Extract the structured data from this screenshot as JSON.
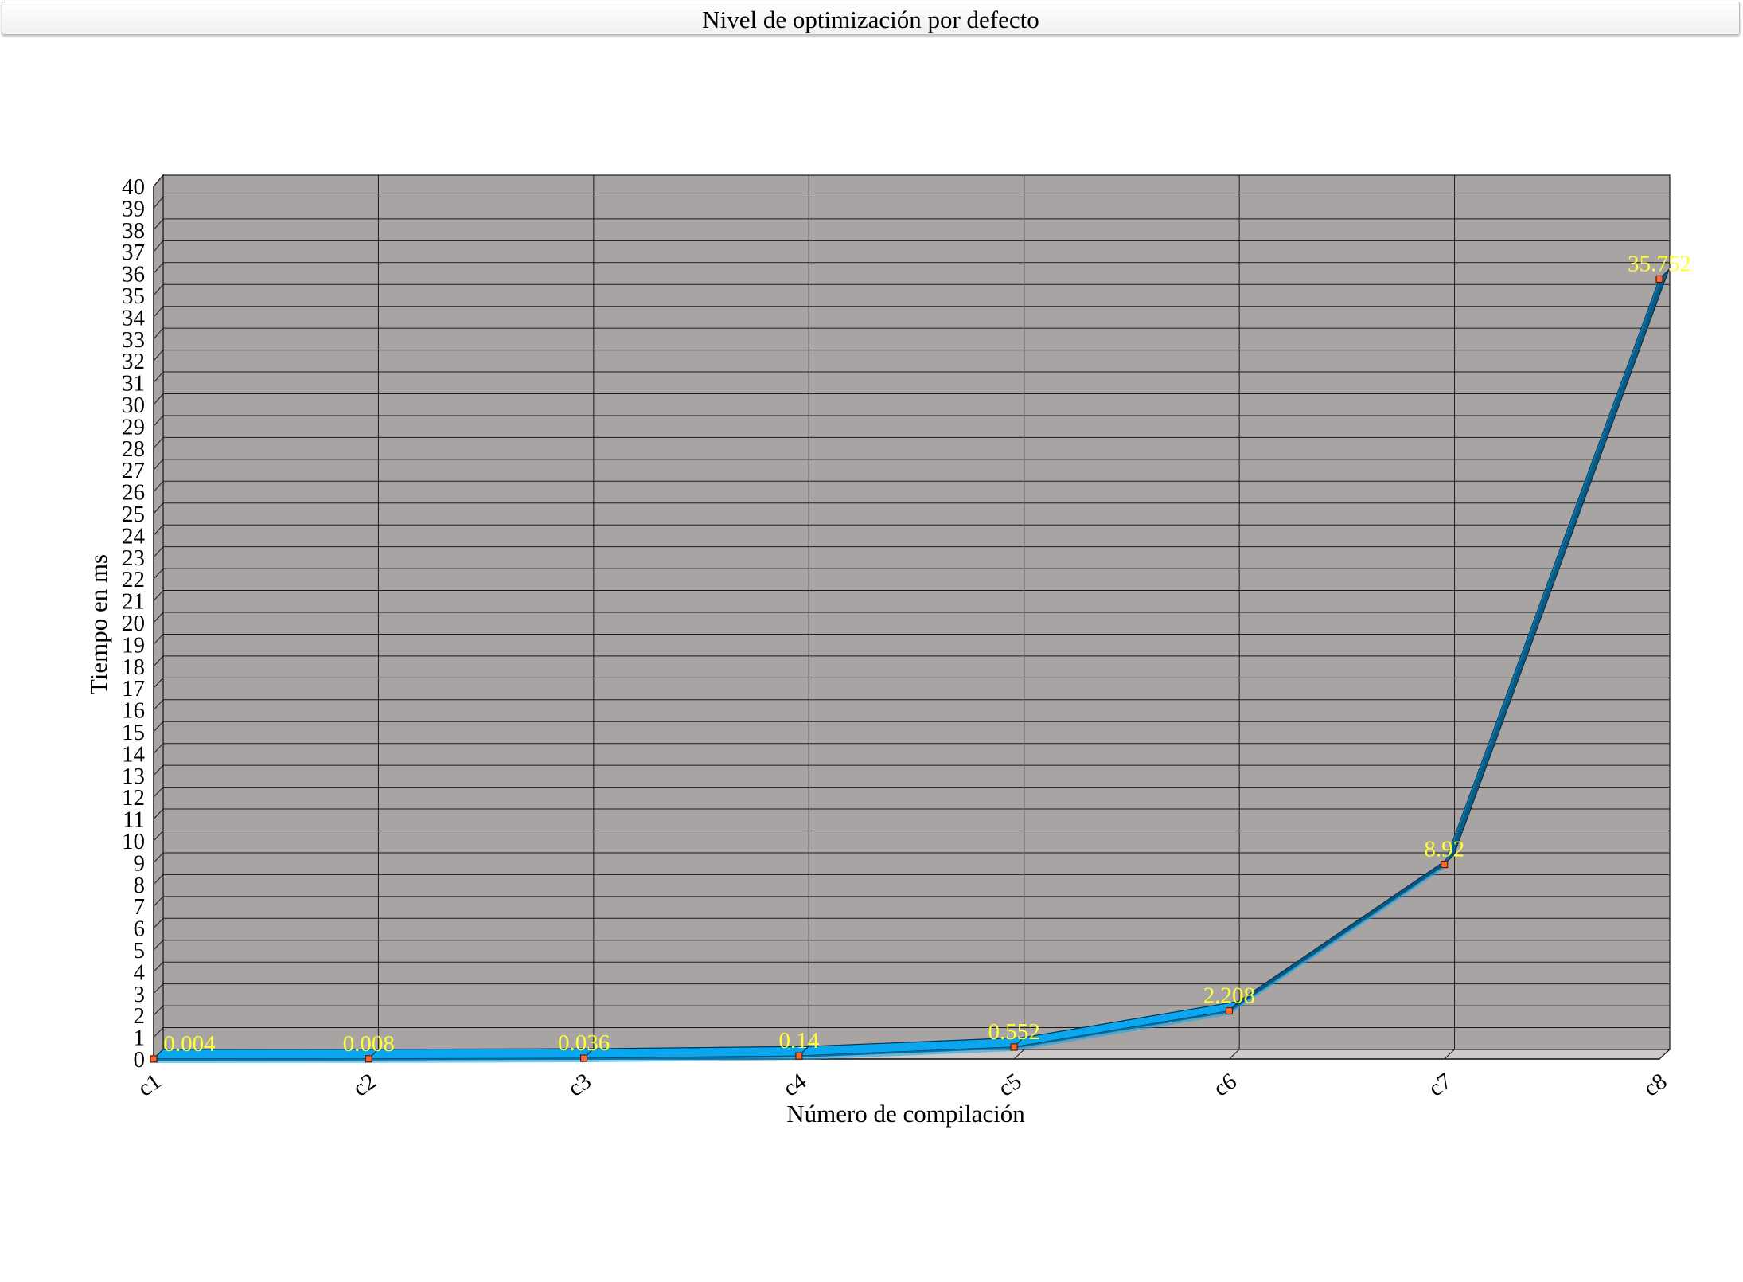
{
  "title": "Nivel de optimización por defecto",
  "chart_data": {
    "type": "line",
    "title": "Nivel de optimización por defecto",
    "xlabel": "Número de compilación",
    "ylabel": "Tiempo en ms",
    "categories": [
      "c1",
      "c2",
      "c3",
      "c4",
      "c5",
      "c6",
      "c7",
      "c8"
    ],
    "series": [
      {
        "values": [
          0.004,
          0.008,
          0.036,
          0.14,
          0.552,
          2.208,
          8.92,
          35.752
        ]
      }
    ],
    "data_labels": [
      "0.004",
      "0.008",
      "0.036",
      "0.14",
      "0.552",
      "2.208",
      "8.92",
      "35.752"
    ],
    "ylim": [
      0,
      40
    ],
    "ytick_step": 1,
    "grid": true,
    "style": "3d",
    "colors": {
      "plot_background": "#a9a4a4",
      "line_light": "#0aa7f0",
      "line_dark": "#0a5a86",
      "marker": "#ff6633",
      "label": "#ffff33",
      "grid": "#1a1a1a"
    }
  }
}
